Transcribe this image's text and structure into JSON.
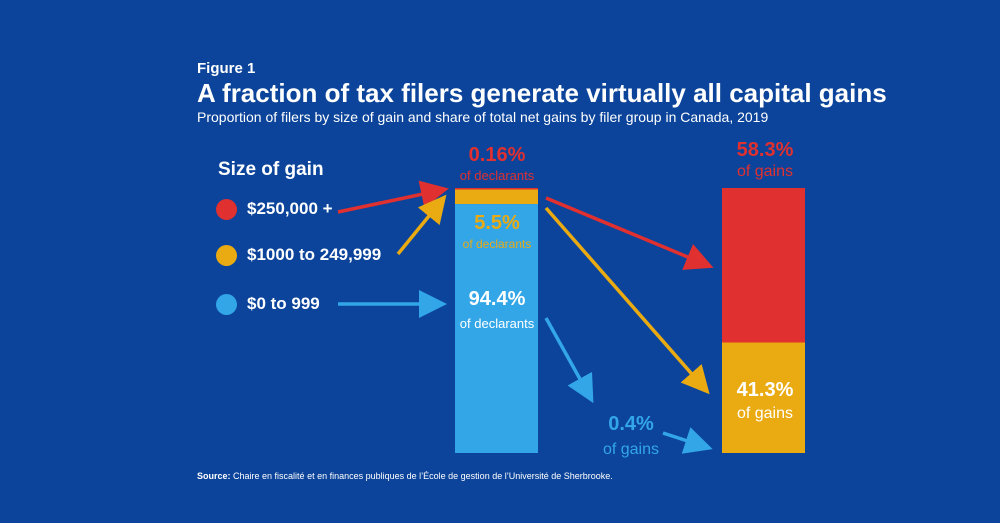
{
  "header": {
    "figure_label": "Figure 1",
    "title": "A fraction of tax filers generate virtually all capital gains",
    "subtitle": "Proportion of filers by size of gain and share of total net gains by filer group in Canada, 2019"
  },
  "legend": {
    "title": "Size of gain"
  },
  "source": {
    "label": "Source:",
    "text": "Chaire en fiscalité et en finances publiques de l’École de gestion de l’Université de Sherbrooke."
  },
  "colors": {
    "background": "#0B449A",
    "red": "#E03030",
    "yellow": "#EAAA12",
    "blue": "#33A6E8"
  },
  "chart_data": {
    "type": "stacked-bar",
    "title": "A fraction of tax filers generate virtually all capital gains",
    "categories": [
      "declarants",
      "gains"
    ],
    "series": [
      {
        "name": "$250,000 +",
        "color": "#E03030",
        "values": [
          0.16,
          58.3
        ],
        "labels": [
          {
            "pct": "0.16%",
            "unit": "of declarants"
          },
          {
            "pct": "58.3%",
            "unit": "of gains"
          }
        ]
      },
      {
        "name": "$1000 to 249,999",
        "color": "#EAAA12",
        "values": [
          5.5,
          41.3
        ],
        "labels": [
          {
            "pct": "5.5%",
            "unit": "of declarants"
          },
          {
            "pct": "41.3%",
            "unit": "of gains"
          }
        ]
      },
      {
        "name": "$0 to 999",
        "color": "#33A6E8",
        "values": [
          94.4,
          0.4
        ],
        "labels": [
          {
            "pct": "94.4%",
            "unit": "of declarants"
          },
          {
            "pct": "0.4%",
            "unit": "of gains"
          }
        ]
      }
    ],
    "ylim": [
      0,
      100
    ]
  }
}
